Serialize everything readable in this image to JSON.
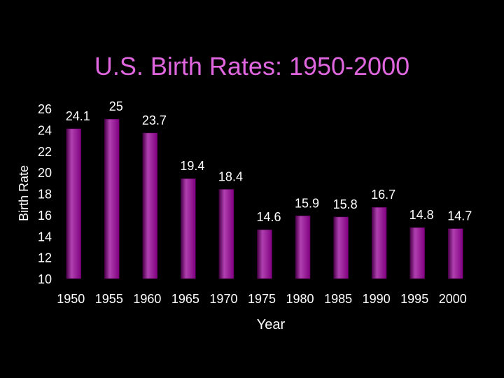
{
  "colors": {
    "background": "#000000",
    "title": "#e066e0",
    "bar_fill": "#800080",
    "bar_highlight": "#b040b0",
    "bar_shadow": "#4a004a",
    "text": "#ffffff"
  },
  "chart_data": {
    "type": "bar",
    "title": "U.S. Birth Rates: 1950-2000",
    "xlabel": "Year",
    "ylabel": "Birth Rate",
    "ylim": [
      10,
      26
    ],
    "yticks": [
      "26",
      "24",
      "22",
      "20",
      "18",
      "16",
      "14",
      "12",
      "10"
    ],
    "grid": false,
    "legend": "none",
    "categories": [
      "1950",
      "1955",
      "1960",
      "1965",
      "1970",
      "1975",
      "1980",
      "1985",
      "1990",
      "1995",
      "2000"
    ],
    "values": [
      24.1,
      25,
      23.7,
      19.4,
      18.4,
      14.6,
      15.9,
      15.8,
      16.7,
      14.8,
      14.7
    ],
    "data_labels": [
      "24.1",
      "25",
      "23.7",
      "19.4",
      "18.4",
      "14.6",
      "15.9",
      "15.8",
      "16.7",
      "14.8",
      "14.7"
    ]
  }
}
